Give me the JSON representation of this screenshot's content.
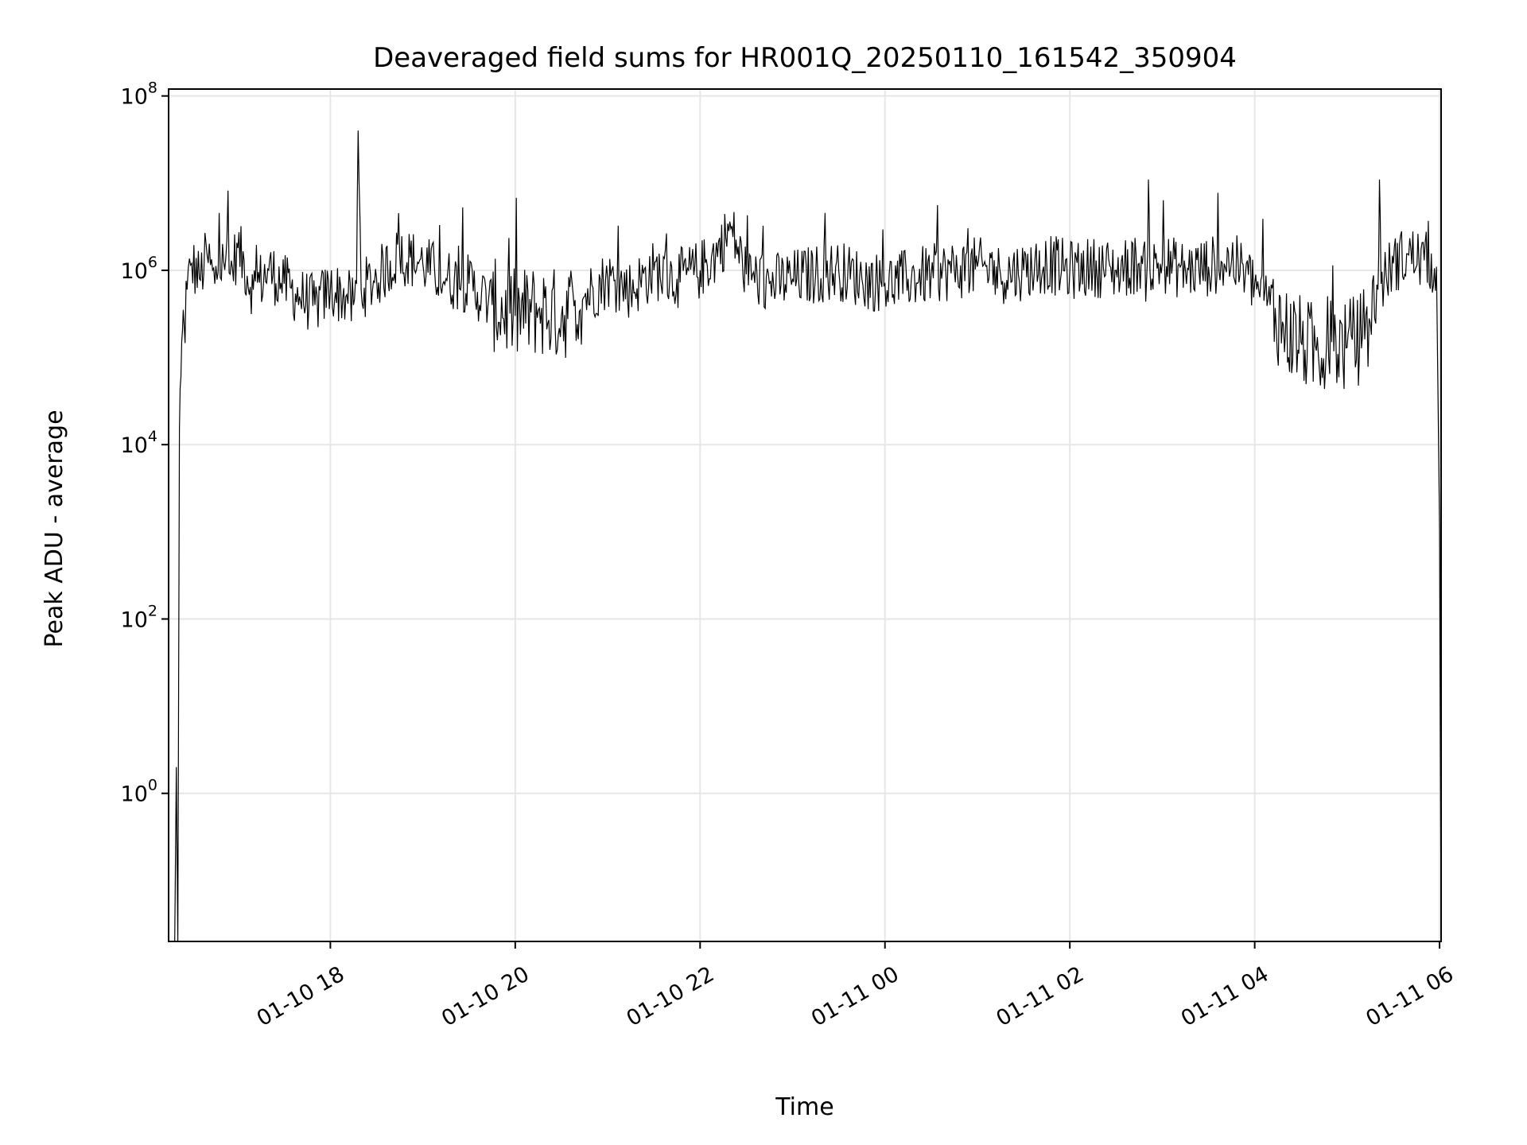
{
  "chart_data": {
    "type": "line",
    "title": "Deaveraged field sums for HR001Q_20250110_161542_350904",
    "xlabel": "Time",
    "ylabel": "Peak ADU - average",
    "yscale": "log",
    "xlim": [
      "2025-01-10 16:15",
      "2025-01-11 06:01"
    ],
    "ylim": [
      0.02,
      120000000
    ],
    "grid": true,
    "legend": "none",
    "line_color": "#000000",
    "x_ticks": [
      {
        "value": "2025-01-10 18:00",
        "label": "01-10 18"
      },
      {
        "value": "2025-01-10 20:00",
        "label": "01-10 20"
      },
      {
        "value": "2025-01-10 22:00",
        "label": "01-10 22"
      },
      {
        "value": "2025-01-11 00:00",
        "label": "01-11 00"
      },
      {
        "value": "2025-01-11 02:00",
        "label": "01-11 02"
      },
      {
        "value": "2025-01-11 04:00",
        "label": "01-11 04"
      },
      {
        "value": "2025-01-11 06:00",
        "label": "01-11 06"
      }
    ],
    "y_ticks": [
      {
        "value": 1,
        "base": "10",
        "exp": "0"
      },
      {
        "value": 100,
        "base": "10",
        "exp": "2"
      },
      {
        "value": 10000,
        "base": "10",
        "exp": "4"
      },
      {
        "value": 1000000,
        "base": "10",
        "exp": "6"
      },
      {
        "value": 100000000,
        "base": "10",
        "exp": "8"
      }
    ],
    "series": [
      {
        "x": [
          "2025-01-10 16:19",
          "2025-01-10 16:20",
          "2025-01-10 16:21",
          "2025-01-10 16:22",
          "2025-01-10 16:23",
          "2025-01-10 16:24",
          "2025-01-10 16:25",
          "2025-01-10 16:27",
          "2025-01-10 16:30",
          "2025-01-10 16:35",
          "2025-01-10 16:40",
          "2025-01-10 16:45",
          "2025-01-10 16:50",
          "2025-01-10 16:55",
          "2025-01-10 17:00",
          "2025-01-10 17:10",
          "2025-01-10 17:20",
          "2025-01-10 17:30",
          "2025-01-10 17:40",
          "2025-01-10 17:50",
          "2025-01-10 18:00",
          "2025-01-10 18:10",
          "2025-01-10 18:15",
          "2025-01-10 18:17",
          "2025-01-10 18:18",
          "2025-01-10 18:20",
          "2025-01-10 18:30",
          "2025-01-10 18:45",
          "2025-01-10 19:00",
          "2025-01-10 19:15",
          "2025-01-10 19:30",
          "2025-01-10 19:45",
          "2025-01-10 20:00",
          "2025-01-10 20:15",
          "2025-01-10 20:30",
          "2025-01-10 20:45",
          "2025-01-10 21:00",
          "2025-01-10 21:15",
          "2025-01-10 21:30",
          "2025-01-10 21:45",
          "2025-01-10 22:00",
          "2025-01-10 22:10",
          "2025-01-10 22:20",
          "2025-01-10 22:30",
          "2025-01-10 22:45",
          "2025-01-10 23:00",
          "2025-01-10 23:15",
          "2025-01-10 23:30",
          "2025-01-10 23:45",
          "2025-01-11 00:00",
          "2025-01-11 00:15",
          "2025-01-11 00:30",
          "2025-01-11 00:45",
          "2025-01-11 01:00",
          "2025-01-11 01:15",
          "2025-01-11 01:30",
          "2025-01-11 01:45",
          "2025-01-11 02:00",
          "2025-01-11 02:15",
          "2025-01-11 02:30",
          "2025-01-11 02:45",
          "2025-01-11 02:50",
          "2025-01-11 02:51",
          "2025-01-11 02:52",
          "2025-01-11 03:00",
          "2025-01-11 03:15",
          "2025-01-11 03:30",
          "2025-01-11 03:45",
          "2025-01-11 04:00",
          "2025-01-11 04:10",
          "2025-01-11 04:20",
          "2025-01-11 04:30",
          "2025-01-11 04:40",
          "2025-01-11 04:50",
          "2025-01-11 05:00",
          "2025-01-11 05:10",
          "2025-01-11 05:15",
          "2025-01-11 05:20",
          "2025-01-11 05:21",
          "2025-01-11 05:22",
          "2025-01-11 05:30",
          "2025-01-11 05:40",
          "2025-01-11 05:50",
          "2025-01-11 05:58",
          "2025-01-11 06:00",
          "2025-01-11 06:01"
        ],
        "y": [
          0.02,
          2,
          0.02,
          15000,
          60000,
          200000,
          250000,
          600000,
          1200000,
          800000,
          1500000,
          700000,
          2000000,
          900000,
          1800000,
          600000,
          1000000,
          700000,
          500000,
          400000,
          600000,
          500000,
          400000,
          700000,
          40000000,
          600000,
          800000,
          1500000,
          1200000,
          800000,
          700000,
          400000,
          300000,
          350000,
          300000,
          500000,
          800000,
          600000,
          1000000,
          800000,
          1000000,
          1500000,
          3000000,
          900000,
          700000,
          800000,
          900000,
          1000000,
          800000,
          700000,
          800000,
          900000,
          1000000,
          1100000,
          900000,
          1000000,
          1200000,
          1000000,
          1100000,
          1000000,
          1200000,
          900000,
          11000000,
          1000000,
          1200000,
          1000000,
          1100000,
          1300000,
          700000,
          400000,
          200000,
          150000,
          120000,
          150000,
          130000,
          180000,
          250000,
          600000,
          11000000,
          700000,
          1200000,
          1500000,
          1300000,
          1100000,
          1000,
          0.02
        ]
      }
    ]
  }
}
